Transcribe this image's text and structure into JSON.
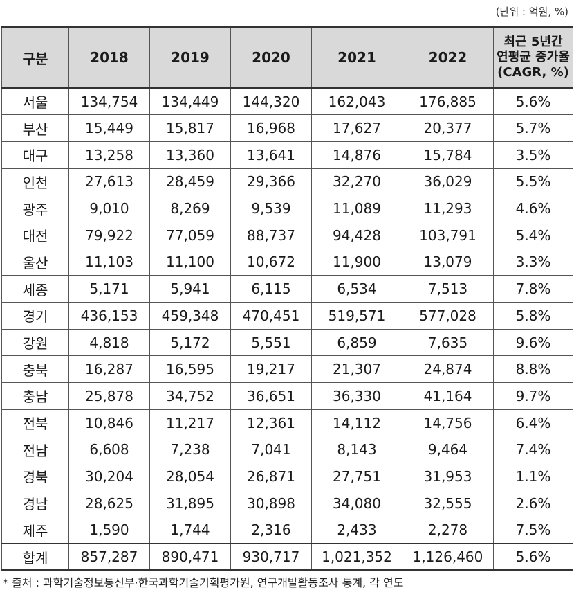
{
  "unit_note": "(단위 : 억원, %)",
  "headers": {
    "region": "구분",
    "years": [
      "2018",
      "2019",
      "2020",
      "2021",
      "2022"
    ],
    "cagr_lines": [
      "최근 5년간",
      "연평균 증가율",
      "(CAGR, %)"
    ]
  },
  "rows": [
    [
      "서울",
      "134,754",
      "134,449",
      "144,320",
      "162,043",
      "176,885",
      "5.6%"
    ],
    [
      "부산",
      "15,449",
      "15,817",
      "16,968",
      "17,627",
      "20,377",
      "5.7%"
    ],
    [
      "대구",
      "13,258",
      "13,360",
      "13,641",
      "14,876",
      "15,784",
      "3.5%"
    ],
    [
      "인천",
      "27,613",
      "28,459",
      "29,366",
      "32,270",
      "36,029",
      "5.5%"
    ],
    [
      "광주",
      "9,010",
      "8,269",
      "9,539",
      "11,089",
      "11,293",
      "4.6%"
    ],
    [
      "대전",
      "79,922",
      "77,059",
      "88,737",
      "94,428",
      "103,791",
      "5.4%"
    ],
    [
      "울산",
      "11,103",
      "11,100",
      "10,672",
      "11,900",
      "13,079",
      "3.3%"
    ],
    [
      "세종",
      "5,171",
      "5,941",
      "6,115",
      "6,534",
      "7,513",
      "7.8%"
    ],
    [
      "경기",
      "436,153",
      "459,348",
      "470,451",
      "519,571",
      "577,028",
      "5.8%"
    ],
    [
      "강원",
      "4,818",
      "5,172",
      "5,551",
      "6,859",
      "7,635",
      "9.6%"
    ],
    [
      "충북",
      "16,287",
      "16,595",
      "19,217",
      "21,307",
      "24,874",
      "8.8%"
    ],
    [
      "충남",
      "25,878",
      "34,752",
      "36,651",
      "36,330",
      "41,164",
      "9.7%"
    ],
    [
      "전북",
      "10,846",
      "11,217",
      "12,361",
      "14,112",
      "14,756",
      "6.4%"
    ],
    [
      "전남",
      "6,608",
      "7,238",
      "7,041",
      "8,143",
      "9,464",
      "7.4%"
    ],
    [
      "경북",
      "30,204",
      "28,054",
      "26,871",
      "27,751",
      "31,953",
      "1.1%"
    ],
    [
      "경남",
      "28,625",
      "31,895",
      "30,898",
      "34,080",
      "32,555",
      "2.6%"
    ],
    [
      "제주",
      "1,590",
      "1,744",
      "2,316",
      "2,433",
      "2,278",
      "7.5%"
    ]
  ],
  "total": [
    "합계",
    "857,287",
    "890,471",
    "930,717",
    "1,021,352",
    "1,126,460",
    "5.6%"
  ],
  "source": "* 출처 : 과학기술정보통신부·한국과학기술기획평가원, 연구개발활동조사 통계, 각 연도"
}
